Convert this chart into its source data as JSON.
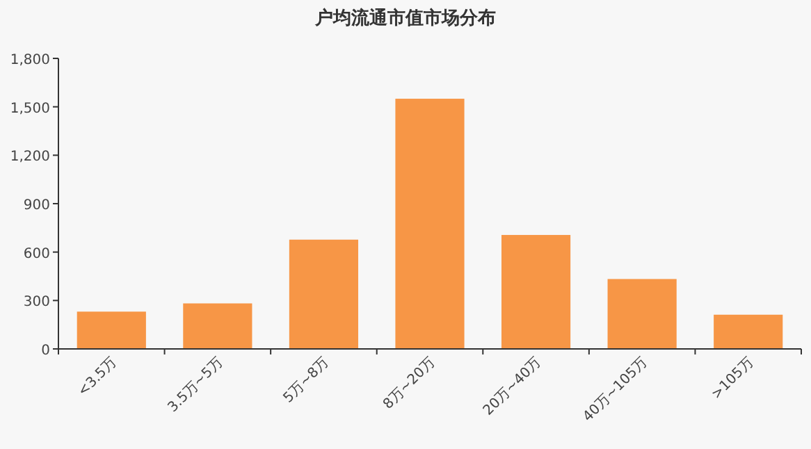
{
  "chart_data": {
    "type": "bar",
    "title": "户均流通市值市场分布",
    "categories": [
      "<3.5万",
      "3.5万~5万",
      "5万~8万",
      "8万~20万",
      "20万~40万",
      "40万~105万",
      ">105万"
    ],
    "values": [
      231,
      282,
      677,
      1550,
      706,
      433,
      212
    ],
    "color": "#f79646",
    "ylim": [
      0,
      1800
    ],
    "yticks": [
      0,
      {
        "value": 300,
        "label": "300"
      },
      {
        "value": 600,
        "label": "600"
      },
      {
        "value": 900,
        "label": "900"
      },
      {
        "value": 1200,
        "label": "1,200"
      },
      {
        "value": 1500,
        "label": "1,500"
      },
      {
        "value": 1800,
        "label": "1,800"
      }
    ]
  }
}
